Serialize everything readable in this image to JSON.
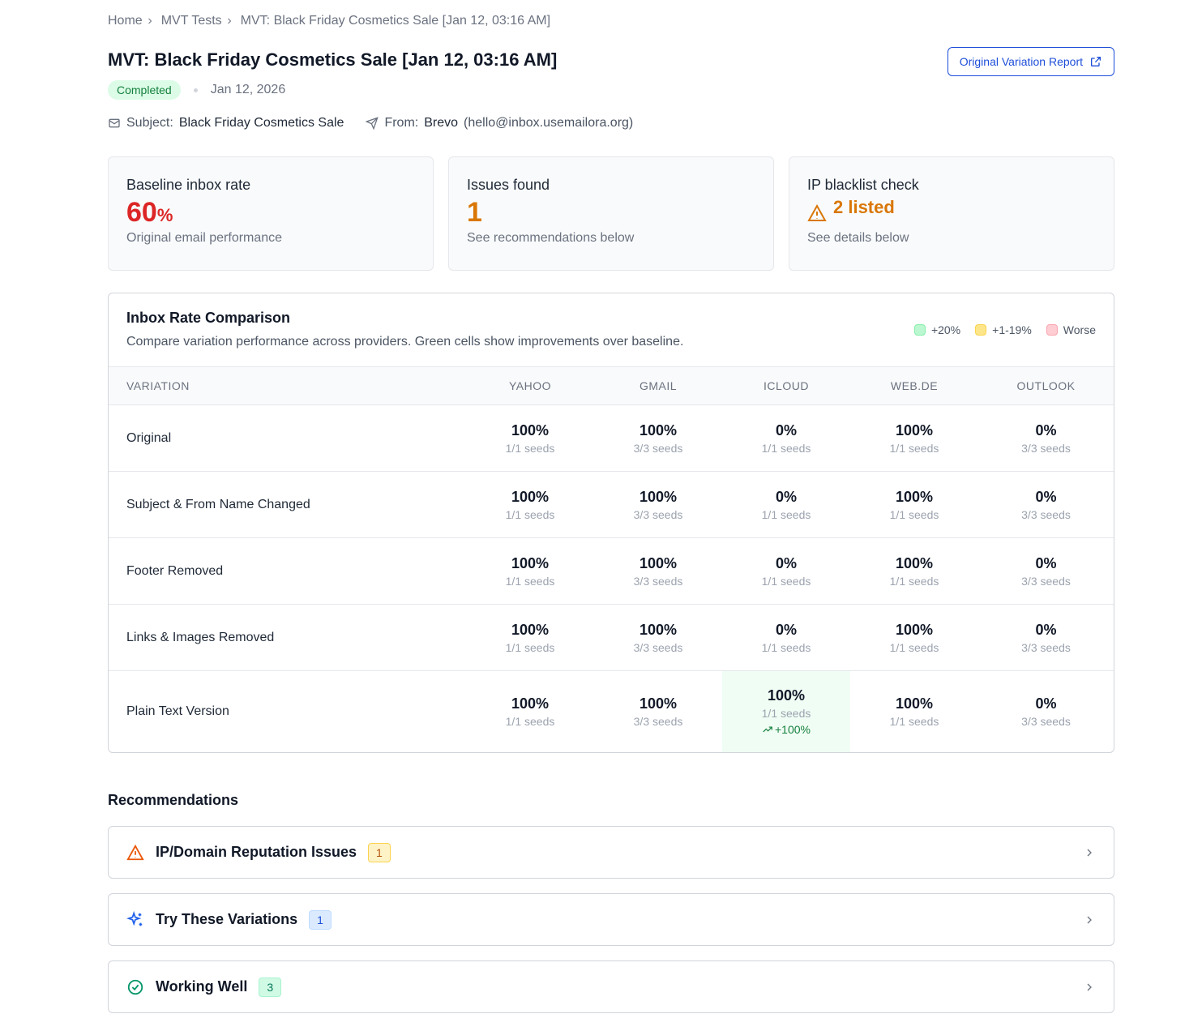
{
  "breadcrumb": [
    "Home",
    "MVT Tests",
    "MVT: Black Friday Cosmetics Sale [Jan 12, 03:16 AM]"
  ],
  "header": {
    "title": "MVT: Black Friday Cosmetics Sale [Jan 12, 03:16 AM]",
    "status": "Completed",
    "date": "Jan 12, 2026",
    "report_button": "Original Variation Report",
    "subject_label": "Subject:",
    "subject": "Black Friday Cosmetics Sale",
    "from_label": "From:",
    "from_name": "Brevo",
    "from_email": "(hello@inbox.usemailora.org)"
  },
  "stats": [
    {
      "label": "Baseline inbox rate",
      "value": "60",
      "unit": "%",
      "note": "Original email performance"
    },
    {
      "label": "Issues found",
      "value": "1",
      "note": "See recommendations below"
    },
    {
      "label": "IP blacklist check",
      "value": "2 listed",
      "note": "See details below"
    }
  ],
  "comparison": {
    "title": "Inbox Rate Comparison",
    "subtitle": "Compare variation performance across providers. Green cells show improvements over baseline.",
    "legend": [
      "+20%",
      "+1-19%",
      "Worse"
    ],
    "columns": [
      "VARIATION",
      "YAHOO",
      "GMAIL",
      "ICLOUD",
      "WEB.DE",
      "OUTLOOK"
    ],
    "rows": [
      {
        "variation": "Original",
        "cells": [
          {
            "rate": "100%",
            "seeds": "1/1 seeds"
          },
          {
            "rate": "100%",
            "seeds": "3/3 seeds"
          },
          {
            "rate": "0%",
            "seeds": "1/1 seeds"
          },
          {
            "rate": "100%",
            "seeds": "1/1 seeds"
          },
          {
            "rate": "0%",
            "seeds": "3/3 seeds"
          }
        ]
      },
      {
        "variation": "Subject & From Name Changed",
        "cells": [
          {
            "rate": "100%",
            "seeds": "1/1 seeds"
          },
          {
            "rate": "100%",
            "seeds": "3/3 seeds"
          },
          {
            "rate": "0%",
            "seeds": "1/1 seeds"
          },
          {
            "rate": "100%",
            "seeds": "1/1 seeds"
          },
          {
            "rate": "0%",
            "seeds": "3/3 seeds"
          }
        ]
      },
      {
        "variation": "Footer Removed",
        "cells": [
          {
            "rate": "100%",
            "seeds": "1/1 seeds"
          },
          {
            "rate": "100%",
            "seeds": "3/3 seeds"
          },
          {
            "rate": "0%",
            "seeds": "1/1 seeds"
          },
          {
            "rate": "100%",
            "seeds": "1/1 seeds"
          },
          {
            "rate": "0%",
            "seeds": "3/3 seeds"
          }
        ]
      },
      {
        "variation": "Links & Images Removed",
        "cells": [
          {
            "rate": "100%",
            "seeds": "1/1 seeds"
          },
          {
            "rate": "100%",
            "seeds": "3/3 seeds"
          },
          {
            "rate": "0%",
            "seeds": "1/1 seeds"
          },
          {
            "rate": "100%",
            "seeds": "1/1 seeds"
          },
          {
            "rate": "0%",
            "seeds": "3/3 seeds"
          }
        ]
      },
      {
        "variation": "Plain Text Version",
        "cells": [
          {
            "rate": "100%",
            "seeds": "1/1 seeds"
          },
          {
            "rate": "100%",
            "seeds": "3/3 seeds"
          },
          {
            "rate": "100%",
            "seeds": "1/1 seeds",
            "delta": "+100%",
            "highlight": true
          },
          {
            "rate": "100%",
            "seeds": "1/1 seeds"
          },
          {
            "rate": "0%",
            "seeds": "3/3 seeds"
          }
        ]
      }
    ]
  },
  "recommendations": {
    "title": "Recommendations",
    "items": [
      {
        "label": "IP/Domain Reputation Issues",
        "count": "1"
      },
      {
        "label": "Try These Variations",
        "count": "1"
      },
      {
        "label": "Working Well",
        "count": "3"
      }
    ]
  }
}
